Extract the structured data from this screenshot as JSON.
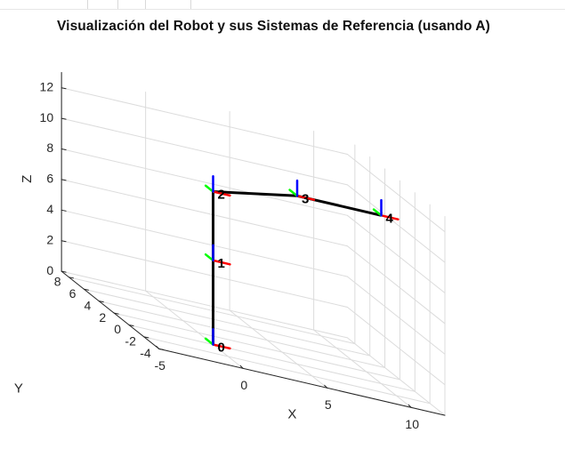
{
  "chart_data": {
    "type": "line",
    "title": "Visualización del Robot y sus Sistemas de Referencia (usando A)",
    "xlabel": "X",
    "ylabel": "Y",
    "zlabel": "Z",
    "xlim": [
      -5,
      12
    ],
    "ylim": [
      -4,
      9
    ],
    "zlim": [
      0,
      13
    ],
    "xticks": [
      "-5",
      "0",
      "5",
      "10"
    ],
    "yticks": [
      "-4",
      "-2",
      "0",
      "2",
      "4",
      "6",
      "8"
    ],
    "zticks": [
      "0",
      "2",
      "4",
      "6",
      "8",
      "10",
      "12"
    ],
    "grid": true,
    "series": [
      {
        "joint_labels": [
          "0",
          "1",
          "2",
          "3",
          "4"
        ],
        "x": [
          0,
          0,
          0,
          5,
          10
        ],
        "y": [
          0,
          0,
          0,
          0,
          0
        ],
        "z": [
          0,
          5.5,
          10,
          11,
          11
        ],
        "color": "#000000"
      }
    ],
    "frame_colors": {
      "x_axis": "#ff0000",
      "y_axis": "#00ff00",
      "z_axis": "#0000ff"
    }
  }
}
